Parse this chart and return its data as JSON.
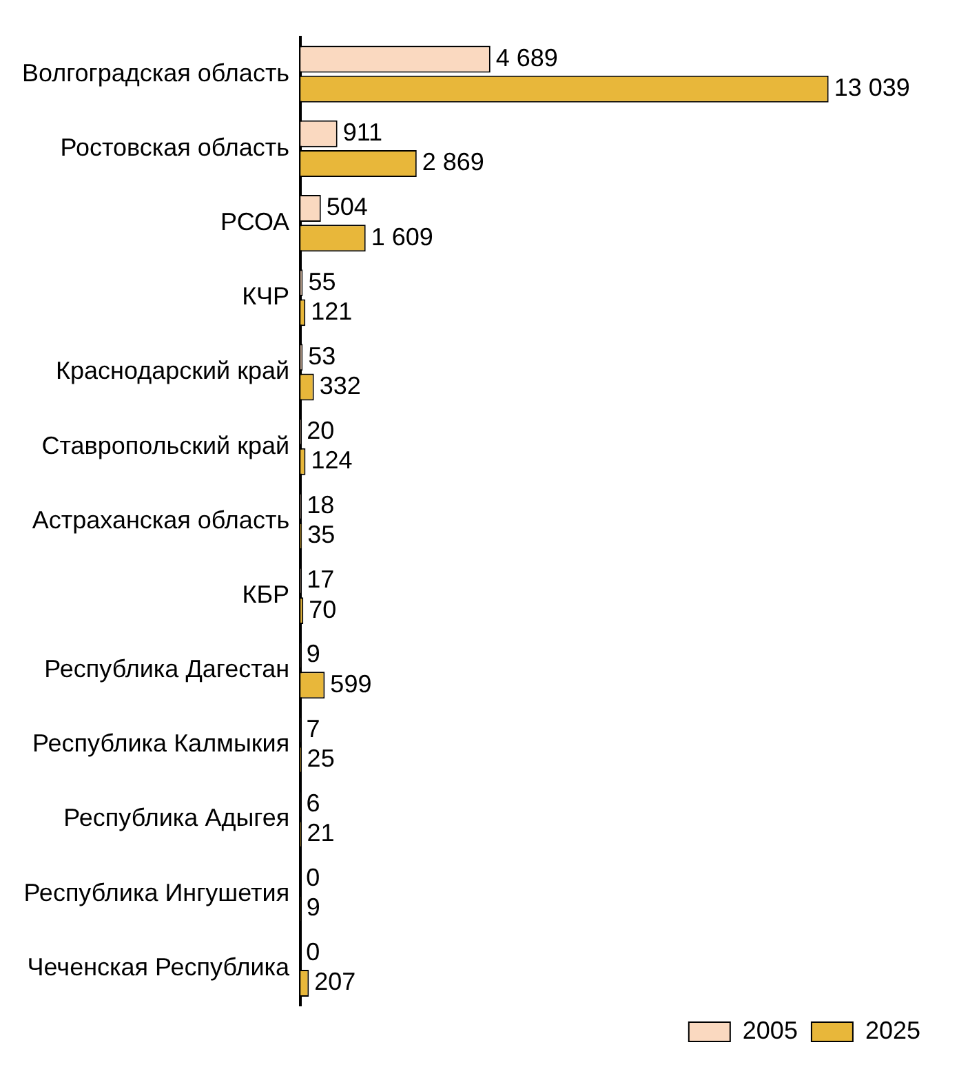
{
  "chart_data": {
    "type": "bar",
    "orientation": "horizontal",
    "categories": [
      "Волгоградская область",
      "Ростовская область",
      "РСОА",
      "КЧР",
      "Краснодарский край",
      "Ставропольский край",
      "Астраханская область",
      "КБР",
      "Республика Дагестан",
      "Республика Калмыкия",
      "Республика Адыгея",
      "Республика Ингушетия",
      "Чеченская Республика"
    ],
    "series": [
      {
        "name": "2005",
        "color": "#fad9c0",
        "values": [
          4689,
          911,
          504,
          55,
          53,
          20,
          18,
          17,
          9,
          7,
          6,
          0,
          0
        ],
        "value_labels": [
          "4 689",
          "911",
          "504",
          "55",
          "53",
          "20",
          "18",
          "17",
          "9",
          "7",
          "6",
          "0",
          "0"
        ]
      },
      {
        "name": "2025",
        "color": "#e8b73a",
        "values": [
          13039,
          2869,
          1609,
          121,
          332,
          124,
          35,
          70,
          599,
          25,
          21,
          9,
          207
        ],
        "value_labels": [
          "13 039",
          "2 869",
          "1 609",
          "121",
          "332",
          "124",
          "35",
          "70",
          "599",
          "25",
          "21",
          "9",
          "207"
        ]
      }
    ],
    "tick_labels": "y",
    "grid": false,
    "legend": "bottom right"
  }
}
